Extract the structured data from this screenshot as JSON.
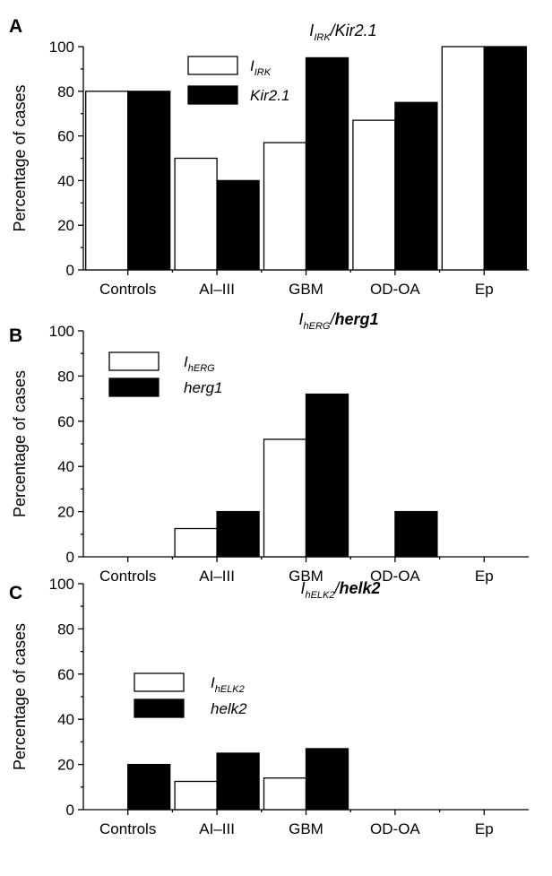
{
  "chart_data": [
    {
      "type": "bar",
      "panel": "A",
      "title": {
        "base": "I",
        "sub": "IRK",
        "sep": "/",
        "gene": "Kir2.1"
      },
      "ylabel": "Percentage of cases",
      "ylim": [
        0,
        100
      ],
      "yticks": [
        "0",
        "20",
        "40",
        "60",
        "80",
        "100"
      ],
      "categories": [
        "Controls",
        "AI–III",
        "GBM",
        "OD-OA",
        "Ep"
      ],
      "series": [
        {
          "name": "I",
          "sub": "IRK",
          "color": "#ffffff",
          "values": [
            80,
            50,
            57,
            67,
            100
          ]
        },
        {
          "name": "Kir2.1",
          "sub": "",
          "color": "#000000",
          "values": [
            80,
            40,
            95,
            75,
            100
          ]
        }
      ],
      "legend": "top-left"
    },
    {
      "type": "bar",
      "panel": "B",
      "title": {
        "base": "I",
        "sub": "hERG",
        "sep": "/",
        "gene": "herg1"
      },
      "ylabel": "Percentage of cases",
      "ylim": [
        0,
        100
      ],
      "yticks": [
        "0",
        "20",
        "40",
        "60",
        "80",
        "100"
      ],
      "categories": [
        "Controls",
        "AI–III",
        "GBM",
        "OD-OA",
        "Ep"
      ],
      "series": [
        {
          "name": "I",
          "sub": "hERG",
          "color": "#ffffff",
          "values": [
            0,
            12.5,
            52,
            0,
            0
          ]
        },
        {
          "name": "herg1",
          "sub": "",
          "color": "#000000",
          "values": [
            0,
            20,
            72,
            20,
            0
          ]
        }
      ],
      "legend": "top-left"
    },
    {
      "type": "bar",
      "panel": "C",
      "title": {
        "base": "I",
        "sub": "hELK2",
        "sep": "/",
        "gene": "helk2"
      },
      "ylabel": "Percentage of cases",
      "ylim": [
        0,
        100
      ],
      "yticks": [
        "0",
        "20",
        "40",
        "60",
        "80",
        "100"
      ],
      "categories": [
        "Controls",
        "AI–III",
        "GBM",
        "OD-OA",
        "Ep"
      ],
      "series": [
        {
          "name": "I",
          "sub": "hELK2",
          "color": "#ffffff",
          "values": [
            0,
            12.5,
            14,
            0,
            0
          ]
        },
        {
          "name": "helk2",
          "sub": "",
          "color": "#000000",
          "values": [
            20,
            25,
            27,
            0,
            0
          ]
        }
      ],
      "legend": "top-left"
    }
  ]
}
